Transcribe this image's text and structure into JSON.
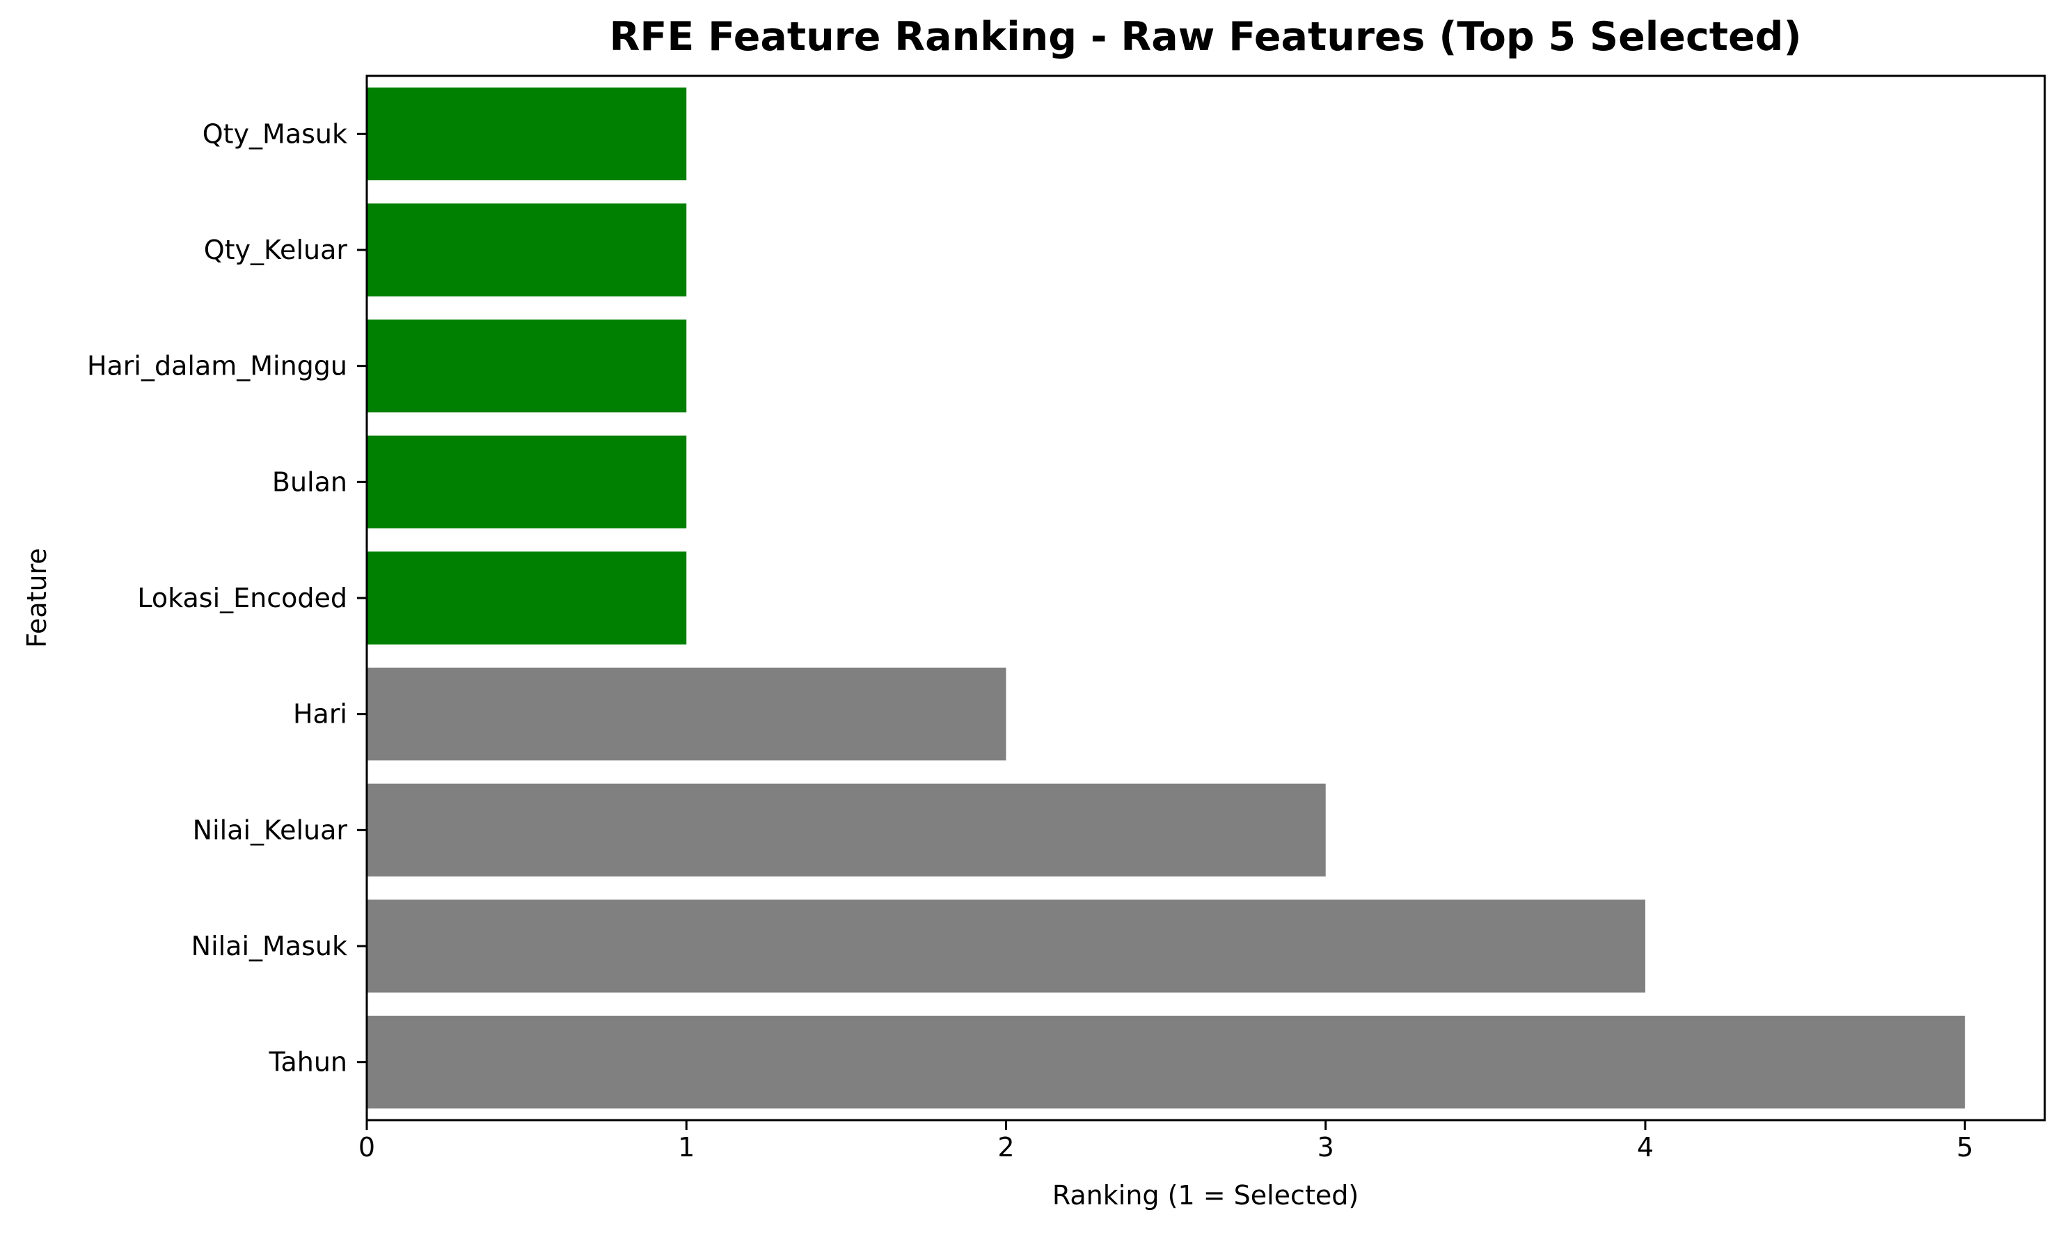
{
  "chart_data": {
    "type": "bar",
    "orientation": "horizontal",
    "title": "RFE Feature Ranking - Raw Features (Top 5 Selected)",
    "xlabel": "Ranking (1 = Selected)",
    "ylabel": "Feature",
    "xlim": [
      0,
      5.25
    ],
    "xticks": [
      "0",
      "1",
      "2",
      "3",
      "4",
      "5"
    ],
    "grid": false,
    "categories": [
      "Qty_Masuk",
      "Qty_Keluar",
      "Hari_dalam_Minggu",
      "Bulan",
      "Lokasi_Encoded",
      "Hari",
      "Nilai_Keluar",
      "Nilai_Masuk",
      "Tahun"
    ],
    "values": [
      1,
      1,
      1,
      1,
      1,
      2,
      3,
      4,
      5
    ],
    "selected": [
      true,
      true,
      true,
      true,
      true,
      false,
      false,
      false,
      false
    ],
    "colors": {
      "selected": "#008000",
      "not_selected": "#808080"
    }
  }
}
